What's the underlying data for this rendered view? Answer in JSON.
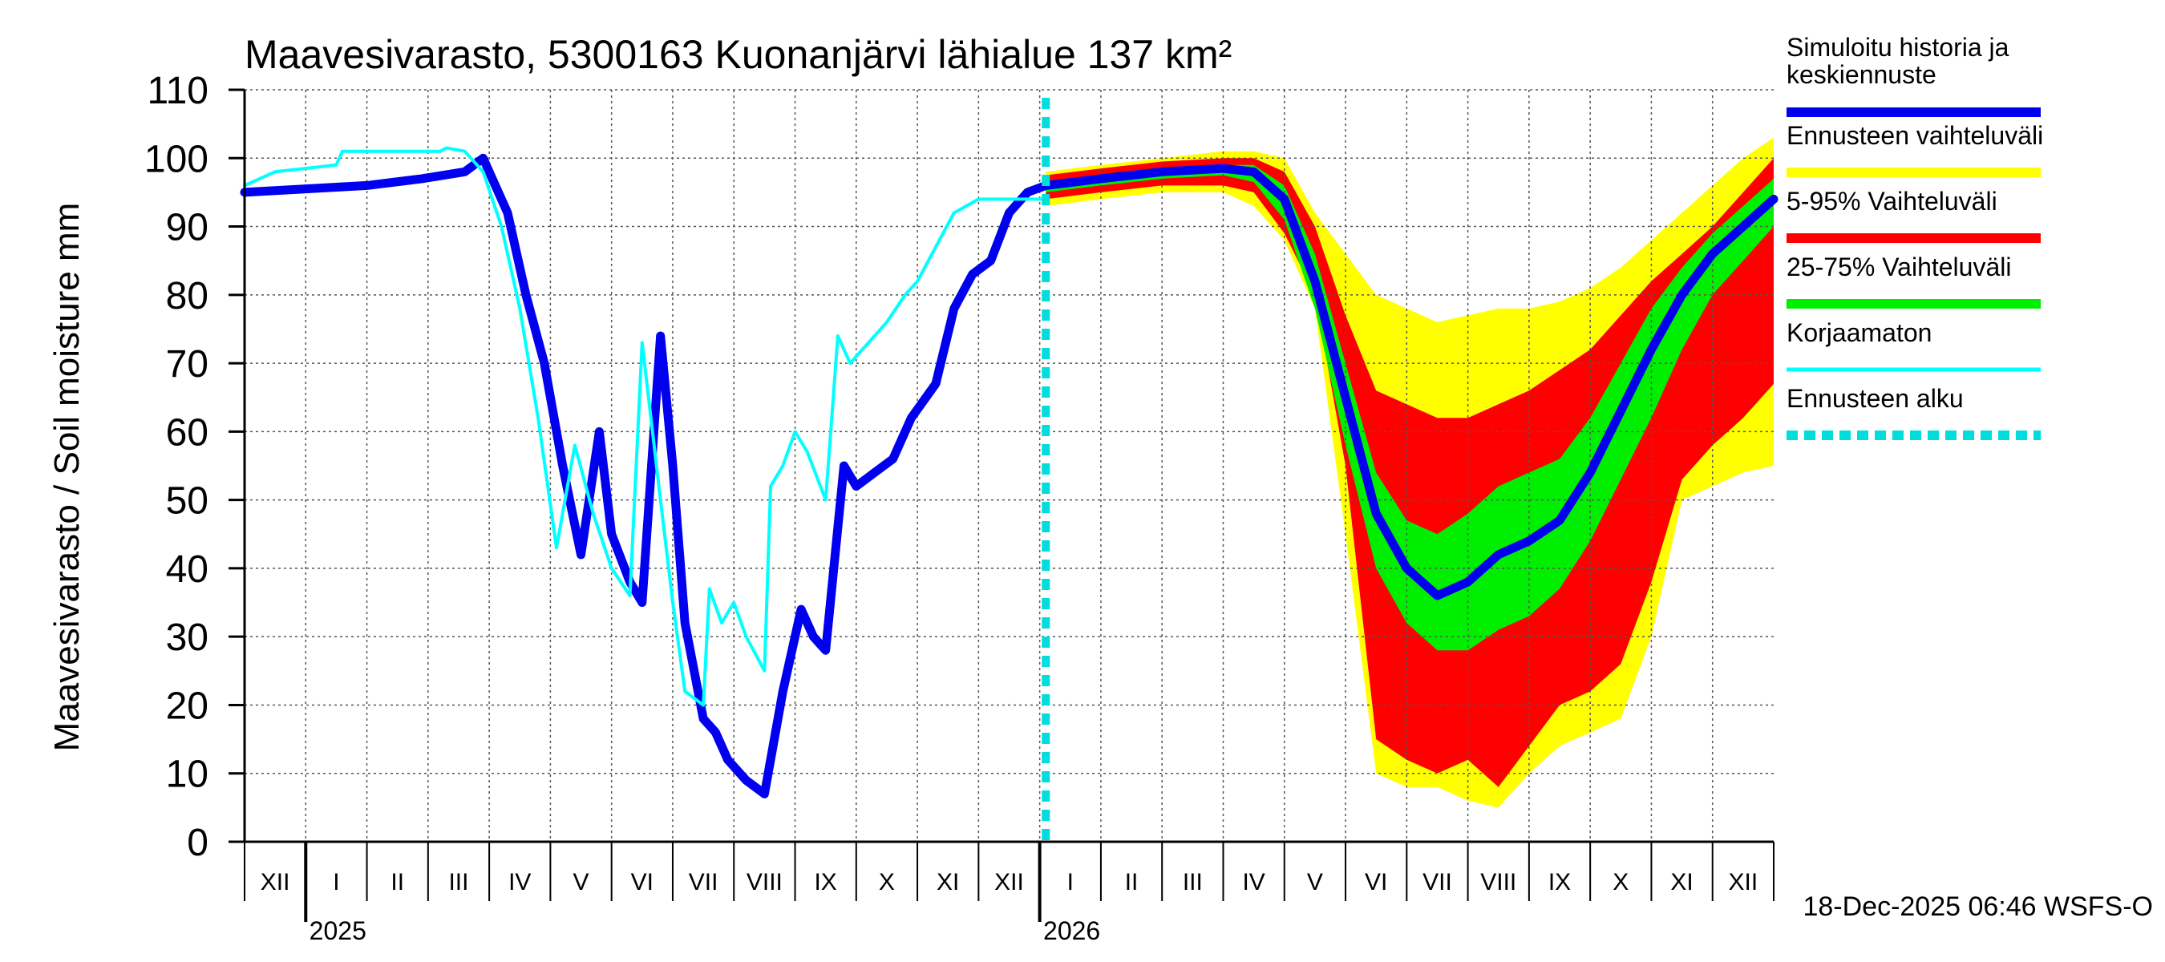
{
  "chart_data": {
    "type": "area",
    "title": "Maavesivarasto, 5300163 Kuonanjärvi lähialue 137 km²",
    "ylabel": "Maavesivarasto / Soil moisture   mm",
    "xlabel": "",
    "ylim": [
      0,
      110
    ],
    "yticks": [
      0,
      10,
      20,
      30,
      40,
      50,
      60,
      70,
      80,
      90,
      100,
      110
    ],
    "grid": true,
    "x_unit": "months since 2024-11-15",
    "xlim": [
      0,
      25
    ],
    "forecast_start": 13.1,
    "month_labels": [
      "XII",
      "I",
      "II",
      "III",
      "IV",
      "V",
      "VI",
      "VII",
      "VIII",
      "IX",
      "X",
      "XI",
      "XII",
      "I",
      "II",
      "III",
      "IV",
      "V",
      "VI",
      "VII",
      "VIII",
      "IX",
      "X",
      "XI",
      "XII"
    ],
    "year_labels": [
      {
        "label": "2025",
        "x": 1
      },
      {
        "label": "2026",
        "x": 13
      }
    ],
    "timestamp": "18-Dec-2025 06:46 WSFS-O",
    "legend": [
      {
        "label": "Simuloitu historia ja",
        "label2": "keskiennuste",
        "color": "#0000ee",
        "style": "solid"
      },
      {
        "label": "Ennusteen vaihteluväli",
        "color": "#ffff00",
        "style": "solid"
      },
      {
        "label": "5-95% Vaihteluväli",
        "color": "#ff0000",
        "style": "solid"
      },
      {
        "label": "25-75% Vaihteluväli",
        "color": "#00ee00",
        "style": "solid"
      },
      {
        "label": "Korjaamaton",
        "color": "#00ffff",
        "style": "solid"
      },
      {
        "label": "Ennusteen alku",
        "color": "#00dddd",
        "style": "dotted"
      }
    ],
    "series": [
      {
        "name": "Simuloitu historia ja keskiennuste (historia)",
        "color": "#0000ee",
        "x": [
          0,
          1,
          2,
          2.9,
          3.6,
          3.9,
          4.1,
          4.3,
          4.6,
          4.9,
          5.2,
          5.5,
          5.8,
          6.0,
          6.3,
          6.5,
          6.8,
          7.0,
          7.2,
          7.5,
          7.7,
          7.9,
          8.2,
          8.5,
          8.8,
          9.1,
          9.3,
          9.5,
          9.8,
          10.0,
          10.3,
          10.6,
          10.9,
          11.3,
          11.6,
          11.9,
          12.2,
          12.5,
          12.8,
          13.1
        ],
        "values": [
          95,
          95.5,
          96,
          97,
          98,
          100,
          96,
          92,
          80,
          70,
          55,
          42,
          60,
          45,
          38,
          35,
          74,
          55,
          32,
          18,
          16,
          12,
          9,
          7,
          22,
          34,
          30,
          28,
          55,
          52,
          54,
          56,
          62,
          67,
          78,
          83,
          85,
          92,
          95,
          96
        ]
      },
      {
        "name": "Korjaamaton",
        "color": "#00ffff",
        "x": [
          0,
          0.5,
          1.5,
          1.6,
          3.2,
          3.3,
          3.6,
          3.9,
          4.2,
          4.5,
          4.8,
          5.1,
          5.4,
          5.7,
          6.0,
          6.3,
          6.5,
          6.8,
          7.0,
          7.2,
          7.5,
          7.6,
          7.8,
          8.0,
          8.2,
          8.5,
          8.6,
          8.8,
          9.0,
          9.2,
          9.5,
          9.7,
          9.9,
          10.2,
          10.5,
          10.8,
          11.0,
          11.3,
          11.6,
          11.8,
          12.0,
          12.3,
          12.6,
          13.1
        ],
        "values": [
          96,
          98,
          99,
          101,
          101,
          101.5,
          101,
          98,
          90,
          78,
          62,
          43,
          58,
          48,
          40,
          36,
          73,
          50,
          35,
          22,
          20,
          37,
          32,
          35,
          30,
          25,
          52,
          55,
          60,
          57,
          50,
          74,
          70,
          73,
          76,
          80,
          82,
          87,
          92,
          93,
          94,
          94,
          94,
          94
        ]
      },
      {
        "name": "Keskiennuste",
        "color": "#0000ee",
        "x": [
          13.1,
          14,
          15,
          16,
          16.5,
          17,
          17.5,
          18,
          18.5,
          19,
          19.5,
          20,
          20.5,
          21,
          21.5,
          22,
          22.5,
          23,
          23.5,
          24,
          24.5,
          25
        ],
        "values": [
          96,
          97,
          98,
          98.5,
          98,
          94,
          82,
          65,
          48,
          40,
          36,
          38,
          42,
          44,
          47,
          54,
          63,
          72,
          80,
          86,
          90,
          94
        ]
      }
    ],
    "bands": [
      {
        "name": "Ennusteen vaihteluväli",
        "color": "#ffff00",
        "x": [
          13.1,
          14,
          15,
          16,
          16.5,
          17,
          17.5,
          18,
          18.5,
          19,
          19.5,
          20,
          20.5,
          21,
          21.5,
          22,
          22.5,
          23,
          23.5,
          24,
          24.5,
          25
        ],
        "upper": [
          98,
          99,
          100,
          101,
          101,
          100,
          92,
          86,
          80,
          78,
          76,
          77,
          78,
          78,
          79,
          81,
          84,
          88,
          92,
          96,
          100,
          103
        ],
        "lower": [
          93,
          94,
          95,
          95,
          93,
          88,
          78,
          45,
          10,
          8,
          8,
          6,
          5,
          10,
          14,
          16,
          18,
          30,
          50,
          52,
          54,
          55
        ]
      },
      {
        "name": "5-95% Vaihteluväli",
        "color": "#ff0000",
        "x": [
          13.1,
          14,
          15,
          16,
          16.5,
          17,
          17.5,
          18,
          18.5,
          19,
          19.5,
          20,
          20.5,
          21,
          21.5,
          22,
          22.5,
          23,
          23.5,
          24,
          24.5,
          25
        ],
        "upper": [
          97.5,
          98.5,
          99.5,
          100,
          100,
          98,
          90,
          77,
          66,
          64,
          62,
          62,
          64,
          66,
          69,
          72,
          77,
          82,
          86,
          90,
          95,
          100
        ],
        "lower": [
          94,
          95,
          96,
          96,
          95,
          89,
          80,
          55,
          15,
          12,
          10,
          12,
          8,
          14,
          20,
          22,
          26,
          38,
          53,
          58,
          62,
          67
        ]
      },
      {
        "name": "25-75% Vaihteluväli",
        "color": "#00ee00",
        "x": [
          13.1,
          14,
          15,
          16,
          16.5,
          17,
          17.5,
          18,
          18.5,
          19,
          19.5,
          20,
          20.5,
          21,
          21.5,
          22,
          22.5,
          23,
          23.5,
          24,
          24.5,
          25
        ],
        "upper": [
          96.5,
          97.5,
          98.5,
          99,
          99,
          96,
          86,
          70,
          54,
          47,
          45,
          48,
          52,
          54,
          56,
          62,
          70,
          78,
          84,
          89,
          93,
          97
        ],
        "lower": [
          95,
          96,
          97,
          97.5,
          96.5,
          91,
          78,
          58,
          40,
          32,
          28,
          28,
          31,
          33,
          37,
          44,
          53,
          62,
          72,
          80,
          85,
          90
        ]
      }
    ]
  }
}
